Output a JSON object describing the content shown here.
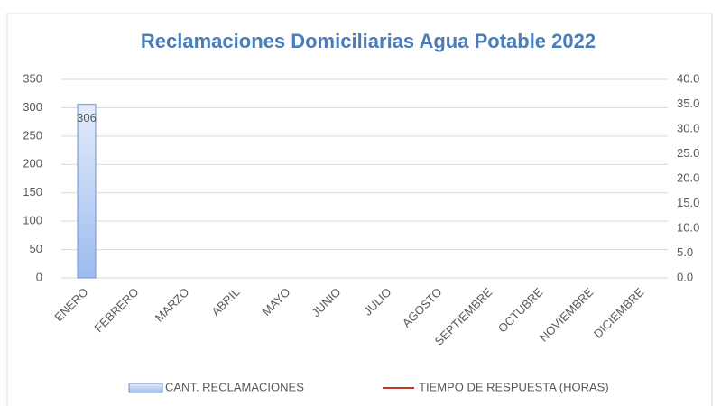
{
  "chart_data": {
    "type": "bar",
    "title": "Reclamaciones Domiciliarias Agua Potable 2022",
    "categories": [
      "ENERO",
      "FEBRERO",
      "MARZO",
      "ABRIL",
      "MAYO",
      "JUNIO",
      "JULIO",
      "AGOSTO",
      "SEPTIEMBRE",
      "OCTUBRE",
      "NOVIEMBRE",
      "DICIEMBRE"
    ],
    "series": [
      {
        "name": "CANT. RECLAMACIONES",
        "color": "#6f8fcf",
        "values": [
          306,
          null,
          null,
          null,
          null,
          null,
          null,
          null,
          null,
          null,
          null,
          null
        ]
      },
      {
        "name": "TIEMPO DE RESPUESTA (HORAS)",
        "color": "#c0392b",
        "type": "line",
        "axis": "y2",
        "values": [
          null,
          null,
          null,
          null,
          null,
          null,
          null,
          null,
          null,
          null,
          null,
          null
        ]
      }
    ],
    "ylim": [
      0,
      350
    ],
    "yticks": [
      0,
      50,
      100,
      150,
      200,
      250,
      300,
      350
    ],
    "y2lim": [
      0,
      40
    ],
    "y2ticks": [
      {
        "value": 0,
        "label": "0.0"
      },
      {
        "value": 5,
        "label": "5.0"
      },
      {
        "value": 10,
        "label": "10.0"
      },
      {
        "value": 15,
        "label": "15.0"
      },
      {
        "value": 20,
        "label": "20.0"
      },
      {
        "value": 25,
        "label": "25.0"
      },
      {
        "value": 30,
        "label": "30.0"
      },
      {
        "value": 35,
        "label": "35.0"
      },
      {
        "value": 40,
        "label": "40.0"
      }
    ],
    "grid": true,
    "legend": "bottom"
  }
}
